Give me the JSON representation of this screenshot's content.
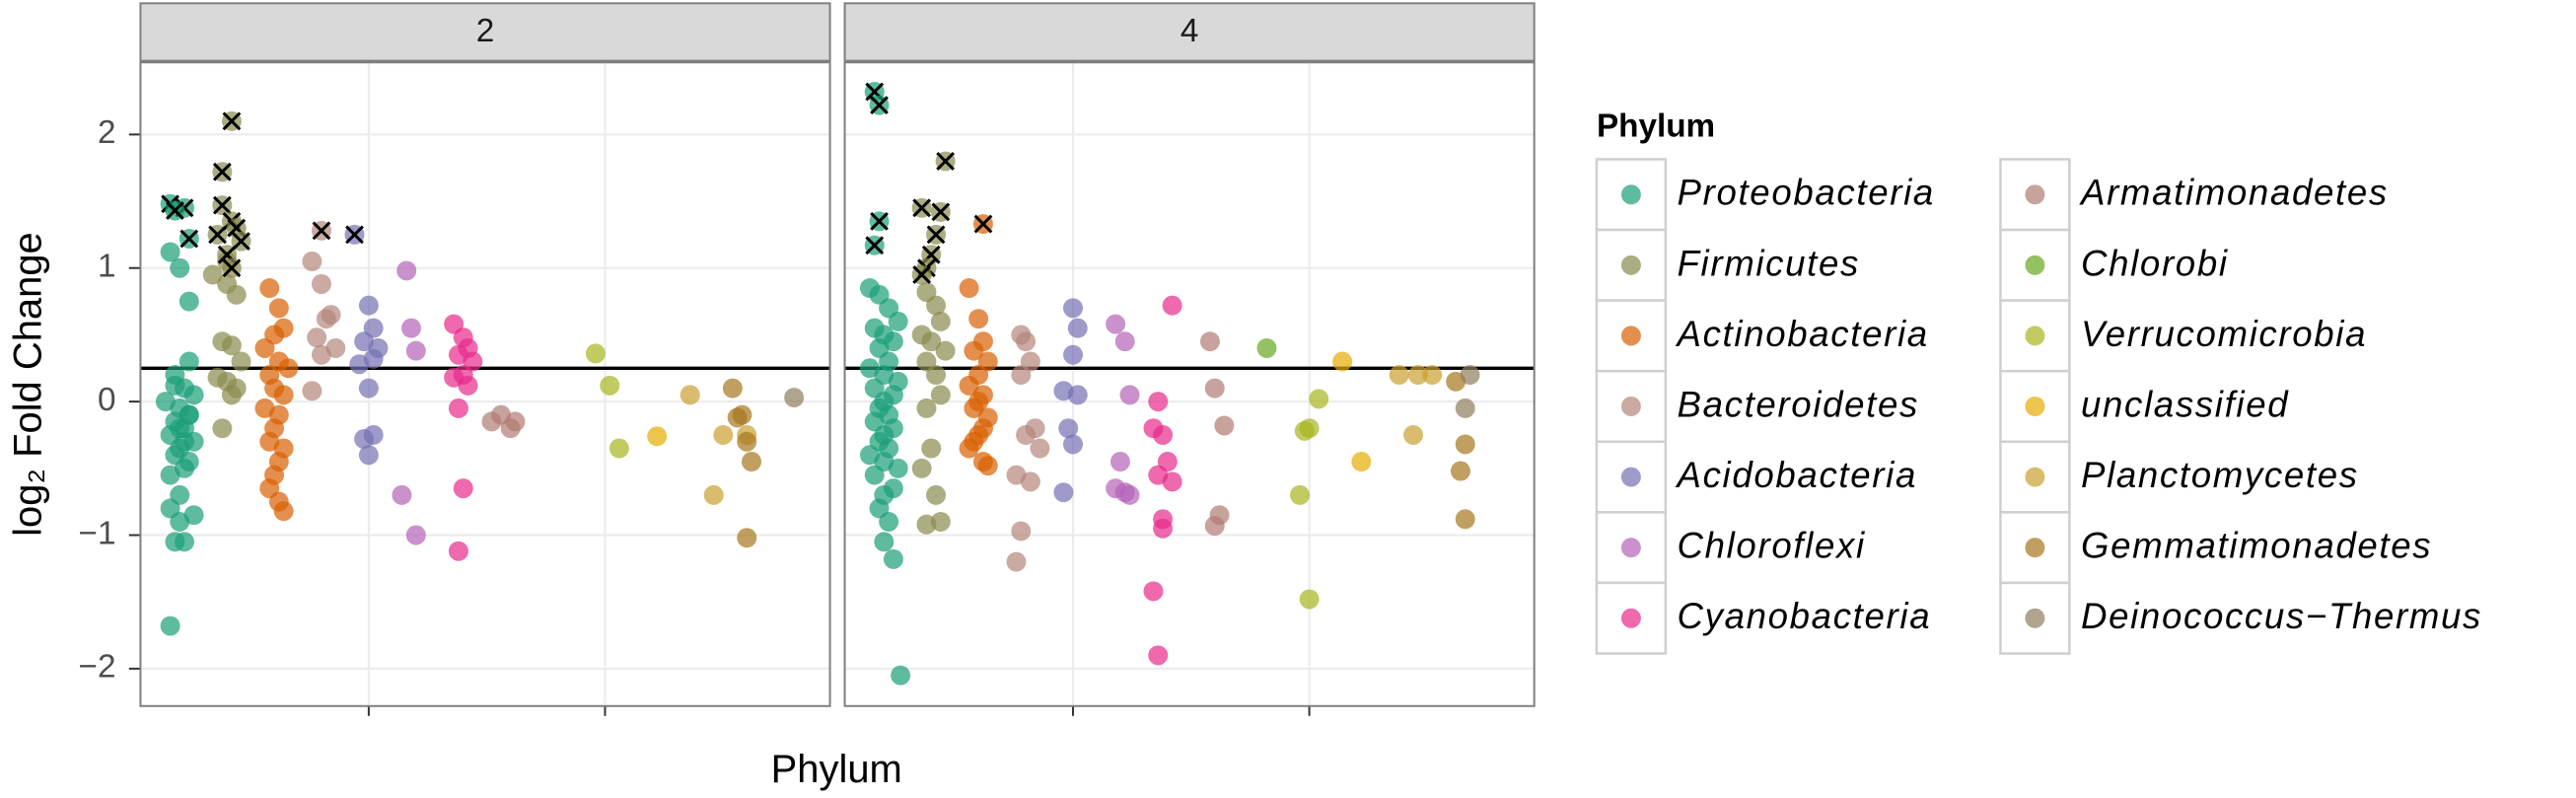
{
  "chart_data": {
    "type": "scatter",
    "xlabel": "Phylum",
    "ylabel": "log₂ Fold Change",
    "legend_title": "Phylum",
    "xlim": [
      0.17,
      14.76
    ],
    "xticks": [
      5,
      10
    ],
    "ylim": [
      -2.28,
      2.54
    ],
    "yticks": [
      {
        "value": -2,
        "label": "−2"
      },
      {
        "value": -1,
        "label": "−1"
      },
      0,
      1,
      2
    ],
    "hline": 0.25,
    "grid": true,
    "series": [
      {
        "name": "Proteobacteria",
        "color": "#1b9e77"
      },
      {
        "name": "Firmicutes",
        "color": "#8a8a4e"
      },
      {
        "name": "Actinobacteria",
        "color": "#d95f02"
      },
      {
        "name": "Bacteroidetes",
        "color": "#b3867a"
      },
      {
        "name": "Acidobacteria",
        "color": "#7570b3"
      },
      {
        "name": "Chloroflexi",
        "color": "#b462b8"
      },
      {
        "name": "Cyanobacteria",
        "color": "#e7298a"
      },
      {
        "name": "Armatimonadetes",
        "color": "#b07a72"
      },
      {
        "name": "Chlorobi",
        "color": "#66a61e"
      },
      {
        "name": "Verrucomicrobia",
        "color": "#a6b51f"
      },
      {
        "name": "unclassified",
        "color": "#e6ab02"
      },
      {
        "name": "Planctomycetes",
        "color": "#c9a030"
      },
      {
        "name": "Gemmatimonadetes",
        "color": "#a6761d"
      },
      {
        "name": "Deinococcus−Thermus",
        "color": "#8e7e5e"
      }
    ],
    "facets": [
      {
        "label": "2",
        "series": [
          {
            "x": [
              0.8,
              1.0,
              1.2,
              0.9,
              1.1,
              1.3,
              0.7,
              1.0,
              1.2,
              0.9,
              1.1,
              0.8,
              1.3,
              1.0,
              0.9,
              1.2,
              1.1,
              0.8,
              1.0,
              1.2,
              0.9,
              1.1,
              1.0,
              0.8,
              1.3,
              1.0,
              1.1,
              0.9,
              1.2,
              0.8
            ],
            "values": [
              1.12,
              1.0,
              0.75,
              0.2,
              0.1,
              0.05,
              0.0,
              -0.05,
              -0.1,
              -0.15,
              -0.2,
              -0.25,
              -0.3,
              -0.35,
              -0.4,
              -0.45,
              -0.5,
              -0.55,
              -0.2,
              -0.1,
              0.12,
              -0.3,
              -0.7,
              -0.8,
              -0.85,
              -0.9,
              -1.05,
              -1.05,
              0.3,
              -1.68
            ],
            "marked_x": [
              0.8,
              1.1,
              1.2,
              0.9
            ],
            "marked_values": [
              1.48,
              1.45,
              1.22,
              1.43
            ]
          },
          {
            "x": [
              1.7,
              2.0,
              2.2,
              1.9,
              2.1,
              2.3,
              1.8,
              2.0,
              2.2,
              2.1,
              1.9,
              2.0
            ],
            "values": [
              0.95,
              0.88,
              0.8,
              0.45,
              0.42,
              0.3,
              0.18,
              0.15,
              0.1,
              0.05,
              -0.2,
              1.05
            ],
            "marked_x": [
              2.1,
              1.9,
              1.9,
              1.8,
              2.1,
              2.2,
              2.3,
              2.0,
              2.1
            ],
            "marked_values": [
              2.1,
              1.72,
              1.47,
              1.25,
              1.35,
              1.3,
              1.2,
              1.1,
              1.0
            ]
          },
          {
            "x": [
              2.9,
              3.1,
              3.2,
              3.0,
              2.8,
              3.1,
              3.3,
              2.9,
              3.0,
              3.2,
              2.8,
              3.1,
              3.0,
              2.9,
              3.2,
              3.1,
              3.0,
              2.9,
              3.1,
              3.2
            ],
            "values": [
              0.85,
              0.7,
              0.55,
              0.5,
              0.4,
              0.3,
              0.25,
              0.2,
              0.1,
              0.05,
              -0.05,
              -0.1,
              -0.2,
              -0.3,
              -0.35,
              -0.45,
              -0.55,
              -0.65,
              -0.75,
              -0.82
            ]
          },
          {
            "x": [
              3.8,
              4.0,
              4.1,
              4.2,
              3.9,
              4.3,
              4.0,
              3.8
            ],
            "values": [
              1.05,
              0.88,
              0.62,
              0.65,
              0.48,
              0.4,
              0.35,
              0.08
            ],
            "marked_x": [
              4.0
            ],
            "marked_values": [
              1.28
            ]
          },
          {
            "x": [
              5.0,
              5.1,
              4.9,
              5.2,
              5.1,
              4.8,
              5.0,
              5.1,
              4.9,
              5.0
            ],
            "values": [
              0.72,
              0.55,
              0.45,
              0.4,
              0.32,
              0.28,
              0.1,
              -0.25,
              -0.28,
              -0.4
            ],
            "marked_x": [
              4.7
            ],
            "marked_values": [
              1.25
            ]
          },
          {
            "x": [
              5.8,
              5.9,
              6.0,
              5.7,
              6.0
            ],
            "values": [
              0.98,
              0.55,
              0.38,
              -0.7,
              -1.0
            ]
          },
          {
            "x": [
              6.8,
              7.0,
              7.1,
              6.9,
              7.2,
              7.0,
              6.8,
              7.1,
              6.9,
              7.0,
              6.9
            ],
            "values": [
              0.58,
              0.48,
              0.4,
              0.35,
              0.3,
              0.2,
              0.18,
              0.12,
              -0.05,
              -0.65,
              -1.12
            ]
          },
          {
            "x": [
              7.6,
              7.8,
              8.0,
              8.1
            ],
            "values": [
              -0.15,
              -0.1,
              -0.2,
              -0.15
            ]
          },
          {
            "x": [],
            "values": []
          },
          {
            "x": [
              9.8,
              10.1,
              10.3
            ],
            "values": [
              0.36,
              0.12,
              -0.35
            ]
          },
          {
            "x": [
              11.1
            ],
            "values": [
              -0.26
            ]
          },
          {
            "x": [
              11.8,
              12.3,
              12.5,
              13.0
            ],
            "values": [
              0.05,
              -0.7,
              -0.25,
              -0.25
            ]
          },
          {
            "x": [
              12.7,
              12.9,
              13.0,
              13.1,
              13.0,
              12.8
            ],
            "values": [
              0.1,
              -0.1,
              -0.3,
              -0.45,
              -1.02,
              -0.12
            ]
          },
          {
            "x": [
              14.0
            ],
            "values": [
              0.03
            ]
          }
        ]
      },
      {
        "label": "4",
        "series": [
          {
            "x": [
              0.7,
              0.9,
              1.1,
              1.3,
              0.8,
              1.0,
              1.2,
              0.9,
              1.1,
              0.7,
              1.0,
              1.3,
              0.8,
              1.2,
              1.0,
              0.9,
              1.1,
              0.8,
              1.2,
              1.0,
              0.9,
              1.1,
              0.7,
              1.0,
              1.3,
              0.8,
              1.2,
              1.0,
              0.9,
              1.1,
              1.0,
              1.2,
              1.35
            ],
            "values": [
              0.85,
              0.8,
              0.7,
              0.6,
              0.55,
              0.5,
              0.45,
              0.4,
              0.3,
              0.25,
              0.2,
              0.15,
              0.1,
              0.05,
              0.0,
              -0.05,
              -0.1,
              -0.15,
              -0.2,
              -0.25,
              -0.3,
              -0.35,
              -0.4,
              -0.45,
              -0.5,
              -0.55,
              -0.65,
              -0.7,
              -0.8,
              -0.9,
              -1.05,
              -1.18,
              -2.05
            ],
            "marked_x": [
              0.8,
              0.9,
              0.9,
              0.8
            ],
            "marked_values": [
              2.32,
              2.22,
              1.35,
              1.17
            ]
          },
          {
            "x": [
              1.9,
              2.1,
              2.2,
              1.8,
              2.0,
              2.3,
              1.9,
              2.1,
              2.2,
              1.9,
              2.0,
              1.8,
              2.1,
              2.2,
              1.9
            ],
            "values": [
              0.82,
              0.72,
              0.6,
              0.5,
              0.45,
              0.38,
              0.3,
              0.2,
              0.05,
              -0.05,
              -0.35,
              -0.5,
              -0.7,
              -0.9,
              -0.92
            ],
            "marked_x": [
              1.8,
              2.3,
              2.2,
              2.1,
              2.0,
              1.9,
              1.8
            ],
            "marked_values": [
              1.45,
              1.8,
              1.42,
              1.25,
              1.1,
              1.0,
              0.95
            ]
          },
          {
            "x": [
              2.8,
              3.0,
              3.1,
              2.9,
              3.2,
              3.0,
              2.8,
              3.1,
              3.0,
              2.9,
              3.2,
              3.1,
              3.0,
              2.9,
              2.8,
              3.1,
              3.2
            ],
            "values": [
              0.85,
              0.62,
              0.45,
              0.38,
              0.3,
              0.2,
              0.12,
              0.05,
              0.0,
              -0.05,
              -0.12,
              -0.2,
              -0.25,
              -0.3,
              -0.35,
              -0.45,
              -0.48
            ],
            "marked_x": [
              3.1
            ],
            "marked_values": [
              1.33
            ]
          },
          {
            "x": [
              3.9,
              4.0,
              4.1,
              3.9,
              4.2,
              4.0,
              4.3,
              3.8,
              4.1,
              3.9,
              3.8
            ],
            "values": [
              0.5,
              0.45,
              0.3,
              0.2,
              -0.2,
              -0.25,
              -0.35,
              -0.55,
              -0.6,
              -0.97,
              -1.2
            ]
          },
          {
            "x": [
              5.0,
              5.1,
              5.0,
              4.8,
              5.1,
              4.9,
              5.0,
              4.8
            ],
            "values": [
              0.7,
              0.55,
              0.35,
              0.08,
              0.05,
              -0.2,
              -0.32,
              -0.68
            ]
          },
          {
            "x": [
              5.9,
              6.1,
              6.2,
              6.0,
              5.9,
              6.2,
              6.1
            ],
            "values": [
              0.58,
              0.45,
              0.05,
              -0.45,
              -0.65,
              -0.7,
              -0.68
            ]
          },
          {
            "x": [
              7.1,
              6.8,
              6.7,
              6.9,
              7.0,
              6.8,
              7.1,
              6.9,
              6.7,
              6.8,
              6.9
            ],
            "values": [
              0.72,
              0.0,
              -0.2,
              -0.25,
              -0.45,
              -0.55,
              -0.6,
              -0.88,
              -1.42,
              -1.9,
              -0.95
            ]
          },
          {
            "x": [
              7.9,
              8.0,
              8.2,
              8.1,
              8.0
            ],
            "values": [
              0.45,
              0.1,
              -0.18,
              -0.85,
              -0.93
            ]
          },
          {
            "x": [
              9.1
            ],
            "values": [
              0.4
            ]
          },
          {
            "x": [
              10.2,
              10.0,
              9.9,
              9.8,
              10.0
            ],
            "values": [
              0.02,
              -0.2,
              -0.22,
              -0.7,
              -1.48
            ]
          },
          {
            "x": [
              10.7,
              11.1
            ],
            "values": [
              0.3,
              -0.45
            ]
          },
          {
            "x": [
              11.9,
              12.3,
              12.6,
              12.2
            ],
            "values": [
              0.2,
              0.2,
              0.2,
              -0.25
            ]
          },
          {
            "x": [
              13.1,
              13.3,
              13.2,
              13.3
            ],
            "values": [
              0.15,
              -0.32,
              -0.52,
              -0.88
            ]
          },
          {
            "x": [
              13.4,
              13.3
            ],
            "values": [
              0.2,
              -0.05
            ]
          }
        ]
      }
    ]
  }
}
